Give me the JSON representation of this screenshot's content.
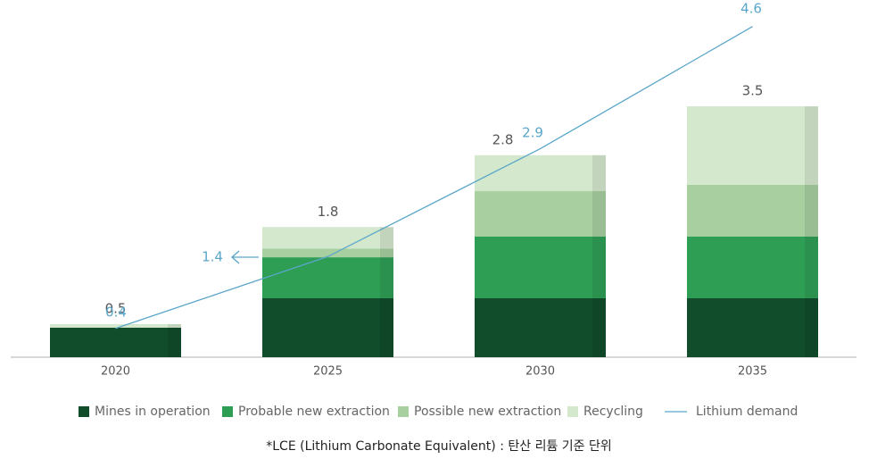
{
  "chart_data": {
    "type": "stacked-bar-line",
    "categories": [
      "2020",
      "2025",
      "2030",
      "2035"
    ],
    "series": [
      {
        "name": "Mines in operation",
        "color": "#114d2b",
        "values": [
          0.41,
          0.82,
          0.82,
          0.82
        ]
      },
      {
        "name": "Probable new extraction",
        "color": "#2e9e55",
        "values": [
          0,
          0.57,
          0.86,
          0.86
        ]
      },
      {
        "name": "Possible new extraction",
        "color": "#a8cfa0",
        "values": [
          0,
          0.12,
          0.63,
          0.72
        ]
      },
      {
        "name": "Recycling",
        "color": "#d3e8cd",
        "values": [
          0.05,
          0.3,
          0.5,
          1.09
        ]
      },
      {
        "name": "Lithium demand",
        "color": "#5aa6c9",
        "type": "line",
        "values": [
          0.4,
          1.4,
          2.9,
          4.6
        ]
      }
    ],
    "totals": [
      0.5,
      1.8,
      2.8,
      3.5
    ],
    "footnote": "*LCE (Lithium Carbonate Equivalent) : 탄산 리튬 기준 단위"
  }
}
